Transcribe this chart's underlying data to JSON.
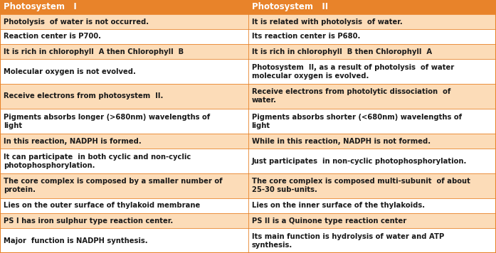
{
  "header": [
    "Photosystem   I",
    "Photosystem   II"
  ],
  "header_bg": "#E8832A",
  "header_text_color": "#FFFFFF",
  "row_bg_light": "#FADADB",
  "row_bg_orange": "#FCDCB8",
  "row_bg_white": "#FFFFFF",
  "border_color": "#E8832A",
  "text_color": "#1a1a1a",
  "rows": [
    [
      "Photolysis  of water is not occurred.",
      "It is related with photolysis  of water.",
      "light"
    ],
    [
      "Reaction center is P700.",
      "Its reaction center is P680.",
      "white"
    ],
    [
      "It is rich in chlorophyll  A then Chlorophyll  B",
      "It is rich in chlorophyll  B then Chlorophyll  A",
      "light"
    ],
    [
      "Molecular oxygen is not evolved.",
      "Photosystem  II, as a result of photolysis  of water\nmolecular oxygen is evolved.",
      "white"
    ],
    [
      "Receive electrons from photosystem  II.",
      "Receive electrons from photolytic dissociation  of\nwater.",
      "light"
    ],
    [
      "Pigments absorbs longer (>680nm) wavelengths of\nlight",
      "Pigments absorbs shorter (<680nm) wavelengths of\nlight",
      "white"
    ],
    [
      "In this reaction, NADPH is formed.",
      "While in this reaction, NADPH is not formed.",
      "light"
    ],
    [
      "It can participate  in both cyclic and non-cyclic\nphotophosphorylation.",
      "Just participates  in non-cyclic photophosphorylation.",
      "white"
    ],
    [
      "The core complex is composed by a smaller number of\nprotein.",
      "The core complex is composed multi-subunit  of about\n25-30 sub-units.",
      "light"
    ],
    [
      "Lies on the outer surface of thylakoid membrane",
      "Lies on the inner surface of the thylakoids.",
      "white"
    ],
    [
      "PS I has iron sulphur type reaction center.",
      "PS II is a Quinone type reaction center",
      "light"
    ],
    [
      "Major  function is NADPH synthesis.",
      "Its main function is hydrolysis of water and ATP\nsynthesis.",
      "white"
    ]
  ],
  "font_size": 7.2,
  "header_font_size": 8.5,
  "fig_width": 6.97,
  "fig_height": 3.56,
  "dpi": 100
}
